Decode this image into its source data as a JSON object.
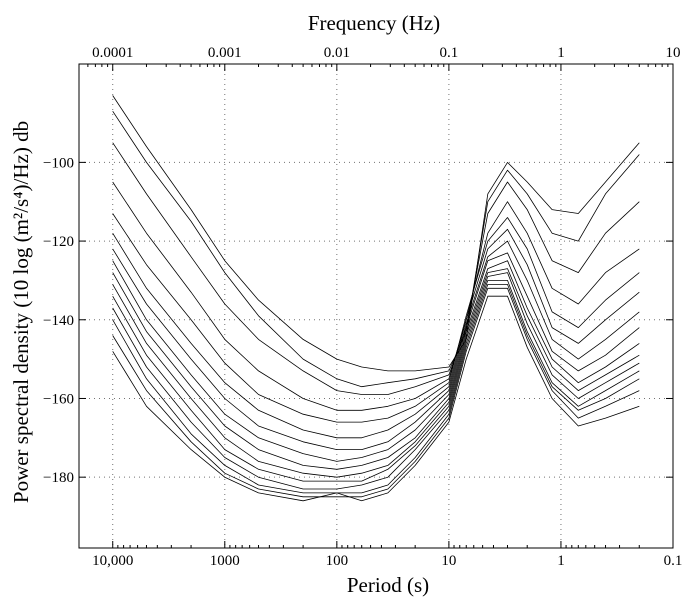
{
  "chart_data": {
    "type": "line",
    "title": "",
    "xlabel": "Period (s)",
    "x2label": "Frequency (Hz)",
    "ylabel": "Power spectral density (10 log (m²/s⁴)/Hz) db",
    "x_scale": "log",
    "xlim_period_s": [
      20000,
      0.1
    ],
    "xlim_frequency_hz": [
      5e-05,
      10
    ],
    "ylim": [
      -198,
      -75
    ],
    "grid": true,
    "legend": "none",
    "line_color": "#000000",
    "x_ticks": [
      {
        "value": 10000,
        "label": "10,000"
      },
      {
        "value": 1000,
        "label": "1000"
      },
      {
        "value": 100,
        "label": "100"
      },
      {
        "value": 10,
        "label": "10"
      },
      {
        "value": 1,
        "label": "1"
      },
      {
        "value": 0.1,
        "label": "0.1"
      }
    ],
    "x2_ticks": [
      {
        "value": 0.0001,
        "label": "0.0001"
      },
      {
        "value": 0.001,
        "label": "0.001"
      },
      {
        "value": 0.01,
        "label": "0.01"
      },
      {
        "value": 0.1,
        "label": "0.1"
      },
      {
        "value": 1,
        "label": "1"
      },
      {
        "value": 10,
        "label": "10"
      }
    ],
    "y_ticks": [
      {
        "value": -100,
        "label": "−100"
      },
      {
        "value": -120,
        "label": "−120"
      },
      {
        "value": -140,
        "label": "−140"
      },
      {
        "value": -160,
        "label": "−160"
      },
      {
        "value": -180,
        "label": "−180"
      }
    ],
    "period_axis_s": [
      10000,
      5000,
      2000,
      1000,
      500,
      200,
      100,
      60,
      35,
      20,
      10,
      7,
      4.5,
      3,
      2,
      1.2,
      0.7,
      0.4,
      0.2
    ],
    "series": [
      {
        "values": [
          -83,
          -96,
          -112,
          -125,
          -135,
          -145,
          -150,
          -152,
          -153,
          -153,
          -152,
          -145,
          -108,
          -100,
          -105,
          -112,
          -113,
          -105,
          -95
        ]
      },
      {
        "values": [
          -87,
          -100,
          -115,
          -128,
          -139,
          -150,
          -155,
          -157,
          -156,
          -155,
          -153,
          -143,
          -110,
          -102,
          -108,
          -118,
          -120,
          -108,
          -98
        ]
      },
      {
        "values": [
          -95,
          -108,
          -124,
          -136,
          -145,
          -153,
          -158,
          -159,
          -159,
          -157,
          -154,
          -142,
          -113,
          -105,
          -112,
          -125,
          -128,
          -118,
          -110
        ]
      },
      {
        "values": [
          -105,
          -118,
          -133,
          -145,
          -153,
          -160,
          -163,
          -163,
          -162,
          -160,
          -155,
          -140,
          -118,
          -110,
          -118,
          -132,
          -136,
          -128,
          -122
        ]
      },
      {
        "values": [
          -113,
          -126,
          -140,
          -151,
          -159,
          -164,
          -166,
          -166,
          -165,
          -162,
          -156,
          -139,
          -120,
          -114,
          -122,
          -138,
          -142,
          -135,
          -128
        ]
      },
      {
        "values": [
          -118,
          -132,
          -146,
          -156,
          -163,
          -168,
          -170,
          -170,
          -168,
          -164,
          -157,
          -140,
          -122,
          -117,
          -126,
          -142,
          -146,
          -140,
          -133
        ]
      },
      {
        "values": [
          -122,
          -136,
          -150,
          -160,
          -167,
          -171,
          -173,
          -173,
          -171,
          -166,
          -158,
          -141,
          -124,
          -120,
          -130,
          -145,
          -150,
          -145,
          -138
        ]
      },
      {
        "values": [
          -125,
          -140,
          -154,
          -164,
          -170,
          -174,
          -176,
          -175,
          -173,
          -168,
          -159,
          -142,
          -125,
          -123,
          -134,
          -148,
          -153,
          -149,
          -142
        ]
      },
      {
        "values": [
          -128,
          -143,
          -157,
          -167,
          -173,
          -177,
          -178,
          -177,
          -175,
          -170,
          -160,
          -143,
          -127,
          -125,
          -137,
          -150,
          -156,
          -152,
          -146
        ]
      },
      {
        "values": [
          -131,
          -146,
          -160,
          -170,
          -176,
          -179,
          -180,
          -179,
          -177,
          -171,
          -161,
          -144,
          -128,
          -127,
          -139,
          -152,
          -158,
          -154,
          -149
        ]
      },
      {
        "values": [
          -134,
          -149,
          -163,
          -173,
          -178,
          -181,
          -181,
          -181,
          -178,
          -172,
          -162,
          -145,
          -129,
          -128,
          -141,
          -154,
          -160,
          -156,
          -151
        ]
      },
      {
        "values": [
          -137,
          -152,
          -166,
          -175,
          -180,
          -183,
          -183,
          -182,
          -180,
          -173,
          -163,
          -146,
          -130,
          -130,
          -143,
          -156,
          -162,
          -158,
          -153
        ]
      },
      {
        "values": [
          -140,
          -155,
          -169,
          -177,
          -182,
          -184,
          -184,
          -184,
          -182,
          -175,
          -164,
          -147,
          -131,
          -131,
          -144,
          -157,
          -163,
          -160,
          -155
        ]
      },
      {
        "values": [
          -144,
          -158,
          -171,
          -179,
          -183,
          -185,
          -185,
          -185,
          -183,
          -176,
          -165,
          -148,
          -132,
          -132,
          -145,
          -158,
          -165,
          -162,
          -158
        ]
      },
      {
        "values": [
          -148,
          -162,
          -173,
          -180,
          -184,
          -186,
          -184,
          -186,
          -184,
          -177,
          -166,
          -150,
          -134,
          -134,
          -147,
          -160,
          -167,
          -165,
          -162
        ]
      }
    ]
  }
}
